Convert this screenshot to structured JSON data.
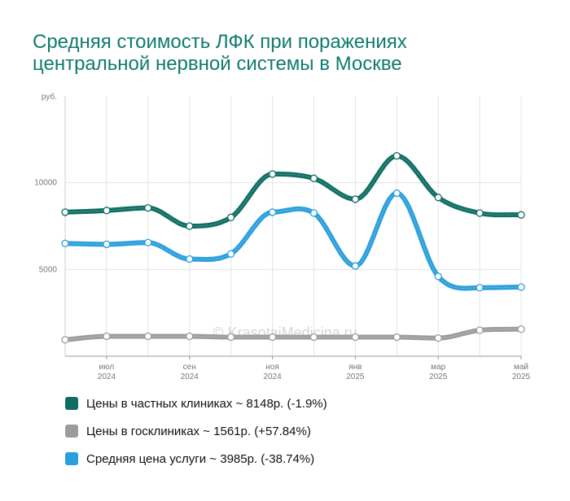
{
  "title_line1": "Средняя стоимость ЛФК при поражениях",
  "title_line2": "центральной нервной системы в Москве",
  "watermark": "© KrasotaiMedicina.ru",
  "chart_data": {
    "type": "line",
    "y_unit_label": "руб.",
    "ylim": [
      0,
      15000
    ],
    "yticks": [
      5000,
      10000
    ],
    "ytick_labels": [
      "5000",
      "10000"
    ],
    "x": [
      "2024-06",
      "2024-07",
      "2024-08",
      "2024-09",
      "2024-10",
      "2024-11",
      "2024-12",
      "2025-01",
      "2025-02",
      "2025-03",
      "2025-04",
      "2025-05"
    ],
    "xtick_labels": [
      {
        "month": "июл",
        "year": "2024",
        "index": 1
      },
      {
        "month": "сен",
        "year": "2024",
        "index": 3
      },
      {
        "month": "ноя",
        "year": "2024",
        "index": 5
      },
      {
        "month": "янв",
        "year": "2025",
        "index": 7
      },
      {
        "month": "мар",
        "year": "2025",
        "index": 9
      },
      {
        "month": "май",
        "year": "2025",
        "index": 11
      }
    ],
    "grid": true,
    "series": [
      {
        "name": "Цены в частных клиниках",
        "color": "#0f6e62",
        "values": [
          8300,
          8400,
          8550,
          7500,
          8000,
          10500,
          10250,
          9050,
          11550,
          9150,
          8250,
          8148
        ]
      },
      {
        "name": "Цены в госклиниках",
        "color": "#9c9c9c",
        "values": [
          950,
          1150,
          1150,
          1150,
          1100,
          1100,
          1100,
          1100,
          1100,
          1050,
          1500,
          1561
        ]
      },
      {
        "name": "Средняя цена услуги",
        "color": "#2a9fdc",
        "values": [
          6500,
          6450,
          6550,
          5600,
          5900,
          8300,
          8250,
          5200,
          9400,
          4600,
          3950,
          3985
        ]
      }
    ]
  },
  "legend": [
    {
      "label": "Цены в частных клиниках ~ 8148р. (-1.9%)",
      "color": "#0f6e62"
    },
    {
      "label": "Цены в госклиниках ~ 1561р. (+57.84%)",
      "color": "#9c9c9c"
    },
    {
      "label": "Средняя цена услуги ~ 3985р. (-38.74%)",
      "color": "#2a9fdc"
    }
  ]
}
